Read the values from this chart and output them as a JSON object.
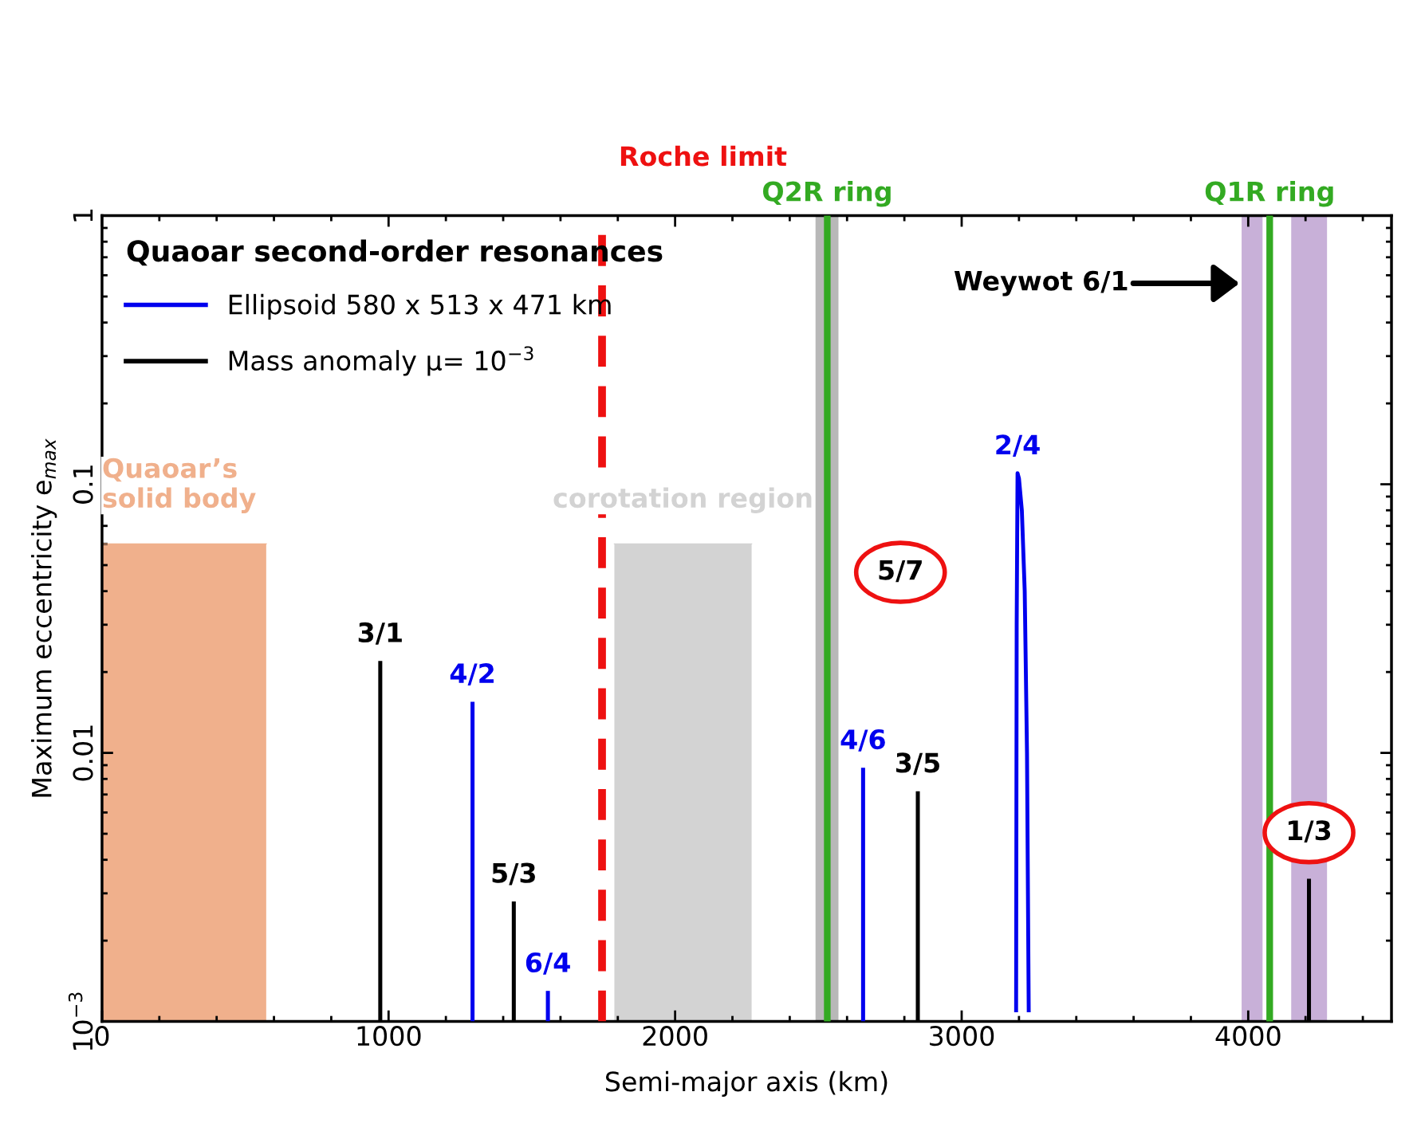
{
  "chart_data": {
    "type": "bar",
    "xlabel": "Semi-major axis (km)",
    "ylabel": "Maximum eccentricity e$_{max}$",
    "legend_title": "Quaoar second-order resonances",
    "xlim": [
      0,
      4500
    ],
    "xticks": [
      0,
      1000,
      2000,
      3000,
      4000
    ],
    "ylim": [
      0.001,
      1
    ],
    "yticks": [
      {
        "value": 0.001,
        "label": "10$^{−3}$"
      },
      0.01,
      0.1,
      1
    ],
    "log": "y",
    "grid": false,
    "legend": "top left",
    "series": [
      {
        "type": "area",
        "name": "Quaoar’s\nsolid body",
        "color": "#f0b08c",
        "x": [
          0,
          573
        ],
        "values": [
          0.06,
          0.06
        ]
      },
      {
        "type": "area",
        "name": "corotation region",
        "color": "#d3d3d3",
        "x": [
          1788,
          2267
        ],
        "values": [
          0.06,
          0.06
        ]
      },
      {
        "name": "Ellipsoid 580 x 513 x 471 km",
        "color": "#0000ee",
        "x": [
          1293,
          1556,
          2656
        ],
        "values": [
          0.0155,
          0.0013,
          0.0088
        ]
      },
      {
        "name": "Mass anomaly μ= 10$^{−3}$",
        "color": "#000000",
        "x": [
          971,
          1437,
          2847,
          4212
        ],
        "values": [
          0.022,
          0.0028,
          0.0072,
          0.0034
        ]
      },
      {
        "type": "line",
        "color": "#0000ee",
        "x": [
          3190,
          3192,
          3195,
          3200,
          3210,
          3220,
          3228,
          3234
        ],
        "values": [
          0.0011,
          0.03,
          0.11,
          0.105,
          0.08,
          0.04,
          0.01,
          0.0011
        ]
      }
    ],
    "bands": [
      {
        "axis": "x",
        "from": 2490,
        "to": 2570,
        "color": "#b8b8b8"
      },
      {
        "axis": "x",
        "from": 3977,
        "to": 4050,
        "color": "#c8b0d8",
        "label": "Weywot 6/1"
      },
      {
        "axis": "x",
        "from": 4150,
        "to": 4275,
        "color": "#c8b0d8"
      }
    ],
    "ref_lines": [
      {
        "axis": "x",
        "value": 1745,
        "label": "Roche limit",
        "color": "#ee1111",
        "line_style": "dashed"
      },
      {
        "axis": "x",
        "value": 2531,
        "label": "Q2R ring",
        "color": "#33aa22",
        "line_style": "solid"
      },
      {
        "axis": "x",
        "value": 4075,
        "label": "Q1R ring",
        "color": "#33aa22",
        "line_style": "solid"
      }
    ],
    "annotations": [
      {
        "text": "3/1",
        "x": 971,
        "y": 0.022
      },
      {
        "text": "4/2",
        "x": 1293,
        "y": 0.0155
      },
      {
        "text": "5/3",
        "x": 1437,
        "y": 0.0028
      },
      {
        "text": "6/4",
        "x": 1556,
        "y": 0.0013
      },
      {
        "text": "4/6",
        "x": 2656,
        "y": 0.0088
      },
      {
        "text": "3/5",
        "x": 2847,
        "y": 0.0072
      },
      {
        "text": "2/4",
        "x": 3195,
        "y": 0.11
      },
      {
        "text": "5/7",
        "x": 2531,
        "y": 0.047
      },
      {
        "text": "1/3",
        "x": 4212,
        "y": 0.0034
      }
    ]
  }
}
